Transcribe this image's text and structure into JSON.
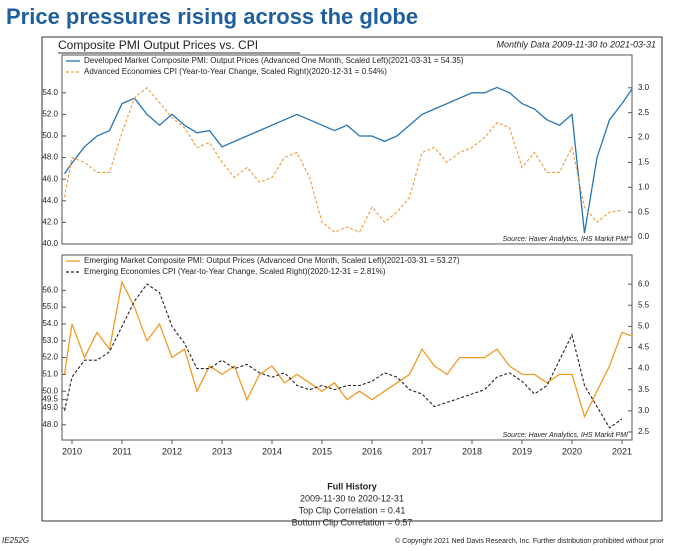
{
  "header": {
    "title": "Price pressures rising across the globe",
    "chart_title": "Composite PMI Output Prices vs. CPI",
    "date_range": "Monthly Data 2009-11-30 to 2021-03-31"
  },
  "chart_data": [
    {
      "type": "line",
      "source": "Source:  Haver Analytics, IHS Markit PMI",
      "x": [
        2009.85,
        2010.0,
        2010.25,
        2010.5,
        2010.75,
        2011.0,
        2011.25,
        2011.5,
        2011.75,
        2012.0,
        2012.25,
        2012.5,
        2012.75,
        2013.0,
        2013.25,
        2013.5,
        2013.75,
        2014.0,
        2014.25,
        2014.5,
        2014.75,
        2015.0,
        2015.25,
        2015.5,
        2015.75,
        2016.0,
        2016.25,
        2016.5,
        2016.75,
        2017.0,
        2017.25,
        2017.5,
        2017.75,
        2018.0,
        2018.25,
        2018.5,
        2018.75,
        2019.0,
        2019.25,
        2019.5,
        2019.75,
        2020.0,
        2020.25,
        2020.5,
        2020.75,
        2021.0,
        2021.2
      ],
      "xlim": [
        2009.8,
        2021.2
      ],
      "ylim": [
        40,
        57.5
      ],
      "yticks": [
        {
          "value": 40,
          "label": "40.0"
        },
        {
          "value": 42,
          "label": "42.0"
        },
        {
          "value": 44,
          "label": "44.0"
        },
        {
          "value": 46,
          "label": "46.0"
        },
        {
          "value": 48,
          "label": "48.0"
        },
        {
          "value": 50,
          "label": "50.0"
        },
        {
          "value": 52,
          "label": "52.0"
        },
        {
          "value": 54,
          "label": "54.0"
        }
      ],
      "y2lim": [
        -0.14,
        3.66
      ],
      "y2ticks": [
        {
          "value": 0,
          "label": "0.0"
        },
        0.5,
        {
          "value": 1,
          "label": "1.0"
        },
        1.5,
        {
          "value": 2,
          "label": "2.0"
        },
        2.5,
        {
          "value": 3,
          "label": "3.0"
        }
      ],
      "series": [
        {
          "name": "Developed Market Composite PMI: Output Prices (Advanced One Month, Scaled Left)(2021-03-31 = 54.35)",
          "color": "#2474b5",
          "dashed": false,
          "values": [
            46.5,
            47.5,
            49,
            50,
            50.5,
            53,
            53.5,
            52,
            51,
            52,
            51,
            50.3,
            50.5,
            49,
            49.5,
            50,
            50.5,
            51,
            51.5,
            52,
            51.5,
            51,
            50.5,
            51,
            50,
            50,
            49.5,
            50,
            51,
            52,
            52.5,
            53,
            53.5,
            54,
            54,
            54.5,
            54,
            53,
            52.5,
            51.5,
            51,
            52,
            41,
            48,
            51.5,
            53,
            54.35
          ]
        },
        {
          "name": "Advanced Economies CPI (Year-to-Year Change, Scaled Right)(2020-12-31 = 0.54%)",
          "color": "#f29a38",
          "dashed": true,
          "axis": "y2",
          "values": [
            0.8,
            1.6,
            1.5,
            1.3,
            1.3,
            2.1,
            2.8,
            3.0,
            2.7,
            2.4,
            2.2,
            1.8,
            1.9,
            1.5,
            1.2,
            1.4,
            1.1,
            1.2,
            1.6,
            1.7,
            1.2,
            0.3,
            0.1,
            0.2,
            0.1,
            0.6,
            0.3,
            0.5,
            0.8,
            1.7,
            1.8,
            1.5,
            1.7,
            1.8,
            2.0,
            2.3,
            2.2,
            1.4,
            1.7,
            1.3,
            1.3,
            1.8,
            0.6,
            0.3,
            0.5,
            0.54,
            null
          ]
        }
      ]
    },
    {
      "type": "line",
      "source": "Source:  Haver Analytics, IHS Markit PMI",
      "x": [
        2009.85,
        2010.0,
        2010.25,
        2010.5,
        2010.75,
        2011.0,
        2011.25,
        2011.5,
        2011.75,
        2012.0,
        2012.25,
        2012.5,
        2012.75,
        2013.0,
        2013.25,
        2013.5,
        2013.75,
        2014.0,
        2014.25,
        2014.5,
        2014.75,
        2015.0,
        2015.25,
        2015.5,
        2015.75,
        2016.0,
        2016.25,
        2016.5,
        2016.75,
        2017.0,
        2017.25,
        2017.5,
        2017.75,
        2018.0,
        2018.25,
        2018.5,
        2018.75,
        2019.0,
        2019.25,
        2019.5,
        2019.75,
        2020.0,
        2020.25,
        2020.5,
        2020.75,
        2021.0,
        2021.2
      ],
      "xlim": [
        2009.8,
        2021.2
      ],
      "xticks": [
        2010,
        2011,
        2012,
        2013,
        2014,
        2015,
        2016,
        2017,
        2018,
        2019,
        2020,
        2021
      ],
      "ylim": [
        47.1,
        58.1
      ],
      "yticks": [
        {
          "value": 48,
          "label": "48.0"
        },
        49.5,
        {
          "value": 49,
          "label": "49.0"
        },
        {
          "value": 50,
          "label": "50.0"
        },
        {
          "value": 51,
          "label": "51.0"
        },
        {
          "value": 52,
          "label": "52.0"
        },
        {
          "value": 53,
          "label": "53.0"
        },
        {
          "value": 54,
          "label": "54.0"
        },
        {
          "value": 55,
          "label": "55.0"
        },
        {
          "value": 56,
          "label": "56.0"
        }
      ],
      "y2lim": [
        2.31,
        6.69
      ],
      "y2ticks": [
        2.5,
        {
          "value": 3,
          "label": "3.0"
        },
        3.5,
        {
          "value": 4,
          "label": "4.0"
        },
        4.5,
        {
          "value": 5,
          "label": "5.0"
        },
        5.5,
        {
          "value": 6,
          "label": "6.0"
        }
      ],
      "series": [
        {
          "name": "Emerging Market Composite PMI: Output Prices (Advanced One Month, Scaled Left)(2021-03-31 = 53.27)",
          "color": "#f39a26",
          "dashed": false,
          "values": [
            51,
            54,
            52,
            53.5,
            52.5,
            56.5,
            55,
            53,
            54,
            52,
            52.5,
            50,
            51.5,
            51,
            51.5,
            49.5,
            51,
            51.5,
            50.5,
            51,
            50.5,
            50,
            50.5,
            49.5,
            50,
            49.5,
            50,
            50.5,
            51,
            52.5,
            51.5,
            51,
            52,
            52,
            52,
            52.5,
            51.5,
            51,
            51,
            50.5,
            51,
            51,
            48.5,
            50,
            51.5,
            53.5,
            53.27
          ]
        },
        {
          "name": "Emerging Economies CPI (Year-to-Year Change, Scaled Right)(2020-12-31 = 2.81%)",
          "color": "#222222",
          "dashed": true,
          "axis": "y2",
          "values": [
            3.0,
            3.8,
            4.2,
            4.2,
            4.4,
            5.0,
            5.6,
            6.0,
            5.8,
            5.0,
            4.6,
            4.0,
            4.0,
            4.2,
            4.0,
            4.1,
            3.9,
            3.8,
            3.9,
            3.6,
            3.5,
            3.6,
            3.5,
            3.6,
            3.6,
            3.7,
            3.9,
            3.8,
            3.5,
            3.4,
            3.1,
            3.2,
            3.3,
            3.4,
            3.5,
            3.8,
            3.9,
            3.7,
            3.4,
            3.6,
            4.2,
            4.8,
            3.6,
            3.1,
            2.6,
            2.81,
            null
          ]
        }
      ]
    }
  ],
  "footer": {
    "heading": "Full History",
    "range": "2009-11-30 to 2020-12-31",
    "top_correlation": "Top Clip Correlation = 0.41",
    "bottom_correlation": "Bottom Clip Correlation = 0.57",
    "code": "IE252G",
    "copyright": "© Copyright 2021 Ned Davis Research, Inc. Further distribution prohibited without prior"
  }
}
